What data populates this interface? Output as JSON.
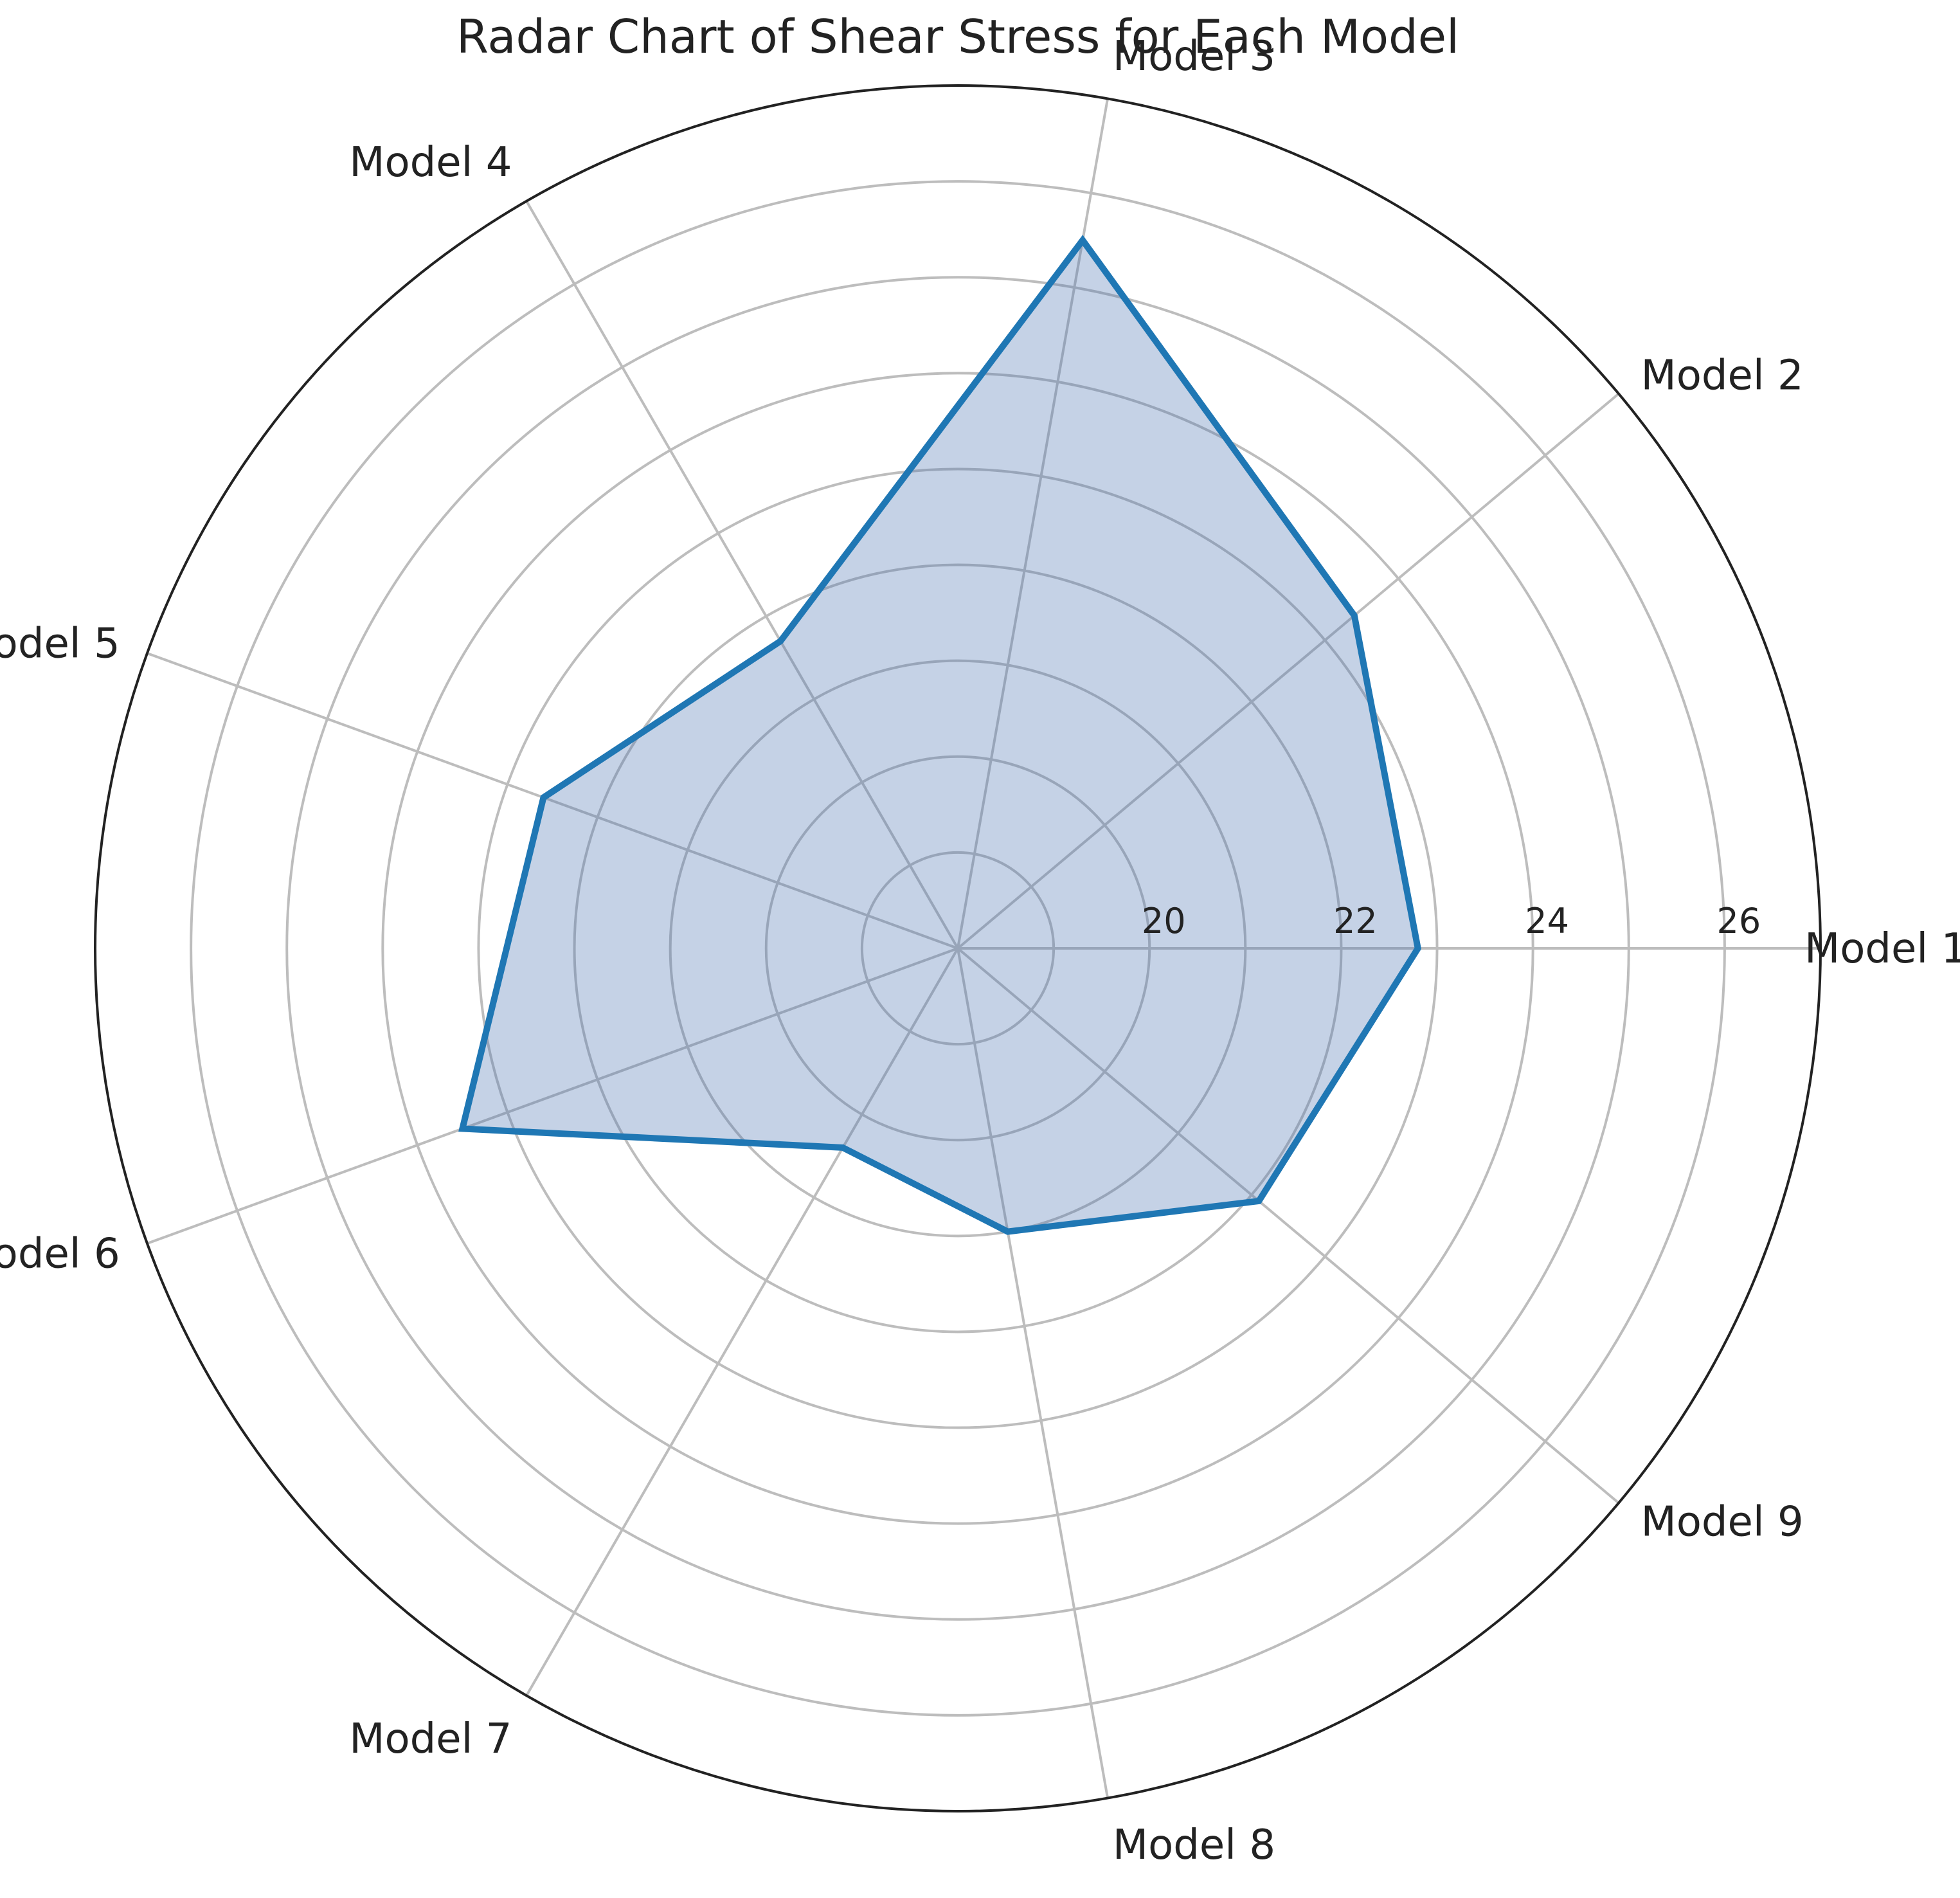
{
  "chart_data": {
    "type": "radar",
    "title": "Radar Chart of Shear Stress for Each Model",
    "categories": [
      "Model 1",
      "Model 2",
      "Model 3",
      "Model 4",
      "Model 5",
      "Model 6",
      "Model 7",
      "Model 8",
      "Model 9"
    ],
    "series": [
      {
        "values": [
          22.8,
          23.4,
          25.5,
          21.7,
          22.6,
          23.5,
          20.4,
          21.0,
          22.1
        ],
        "color": "#1f77b4",
        "fill_color": "#4c72b0"
      }
    ],
    "rticks": [
      20,
      22,
      24,
      26
    ],
    "rlim": [
      18,
      27
    ],
    "grid": true
  },
  "colors": {
    "grid": "#bdbdbd",
    "frame": "#222222",
    "text": "#222222"
  }
}
